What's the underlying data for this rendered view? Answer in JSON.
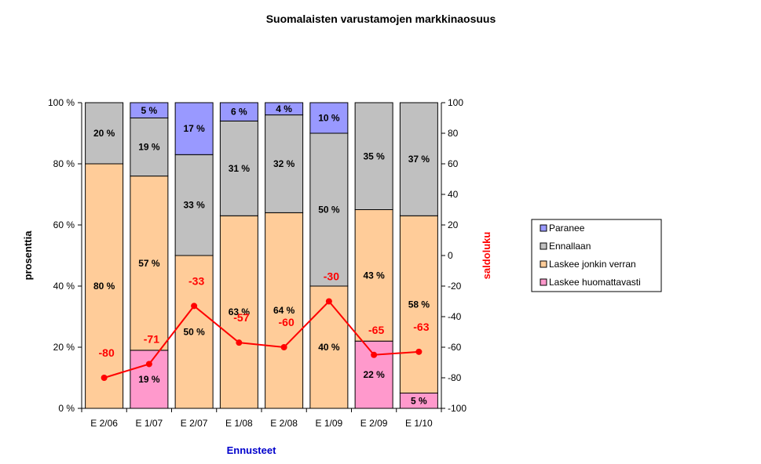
{
  "chart_data": {
    "type": "bar",
    "stacked": true,
    "title": "Suomalaisten varustamojen markkinaosuus",
    "xlabel": "Ennusteet",
    "ylabel": "prosenttia",
    "y2label": "saldoluku",
    "categories": [
      "E 2/06",
      "E 1/07",
      "E 2/07",
      "E 1/08",
      "E 2/08",
      "E 1/09",
      "E 2/09",
      "E 1/10"
    ],
    "ylim": [
      0,
      100
    ],
    "yticks": [
      "0 %",
      "20 %",
      "40 %",
      "60 %",
      "80 %",
      "100 %"
    ],
    "y2lim": [
      -100,
      100
    ],
    "y2ticks": [
      "-100",
      "-80",
      "-60",
      "-40",
      "-20",
      "0",
      "20",
      "40",
      "60",
      "80",
      "100"
    ],
    "series": [
      {
        "name": "Laskee huomattavasti",
        "color": "#ff99cc",
        "values": [
          0,
          19,
          0,
          0,
          0,
          0,
          22,
          5
        ],
        "labels": [
          "",
          "19 %",
          "",
          "",
          "",
          "",
          "22 %",
          "5 %"
        ]
      },
      {
        "name": "Laskee jonkin verran",
        "color": "#ffcc99",
        "values": [
          80,
          57,
          50,
          63,
          64,
          40,
          43,
          58
        ],
        "labels": [
          "80 %",
          "57 %",
          "50 %",
          "63 %",
          "64 %",
          "40 %",
          "43 %",
          "58 %"
        ]
      },
      {
        "name": "Ennallaan",
        "color": "#c0c0c0",
        "values": [
          20,
          19,
          33,
          31,
          32,
          50,
          35,
          37
        ],
        "labels": [
          "20 %",
          "19 %",
          "33 %",
          "31 %",
          "32 %",
          "50 %",
          "35 %",
          "37 %"
        ]
      },
      {
        "name": "Paranee",
        "color": "#9999ff",
        "values": [
          0,
          5,
          17,
          6,
          4,
          10,
          0,
          0
        ],
        "labels": [
          "",
          "5 %",
          "17 %",
          "6 %",
          "4 %",
          "10 %",
          "",
          ""
        ]
      }
    ],
    "line": {
      "axis": "right",
      "color": "#ff0000",
      "values": [
        -80,
        -71,
        -33,
        -57,
        -60,
        -30,
        -65,
        -63
      ],
      "labels": [
        "-80",
        "-71",
        "-33",
        "-57",
        "-60",
        "-30",
        "-65",
        "-63"
      ]
    },
    "legend": {
      "position": "right",
      "entries": [
        "Paranee",
        "Ennallaan",
        "Laskee jonkin verran",
        "Laskee huomattavasti"
      ]
    },
    "colors": {
      "axis_title_right": "#ff0000",
      "axis_title_x": "#0000cc",
      "bar_outline": "#000000"
    }
  }
}
